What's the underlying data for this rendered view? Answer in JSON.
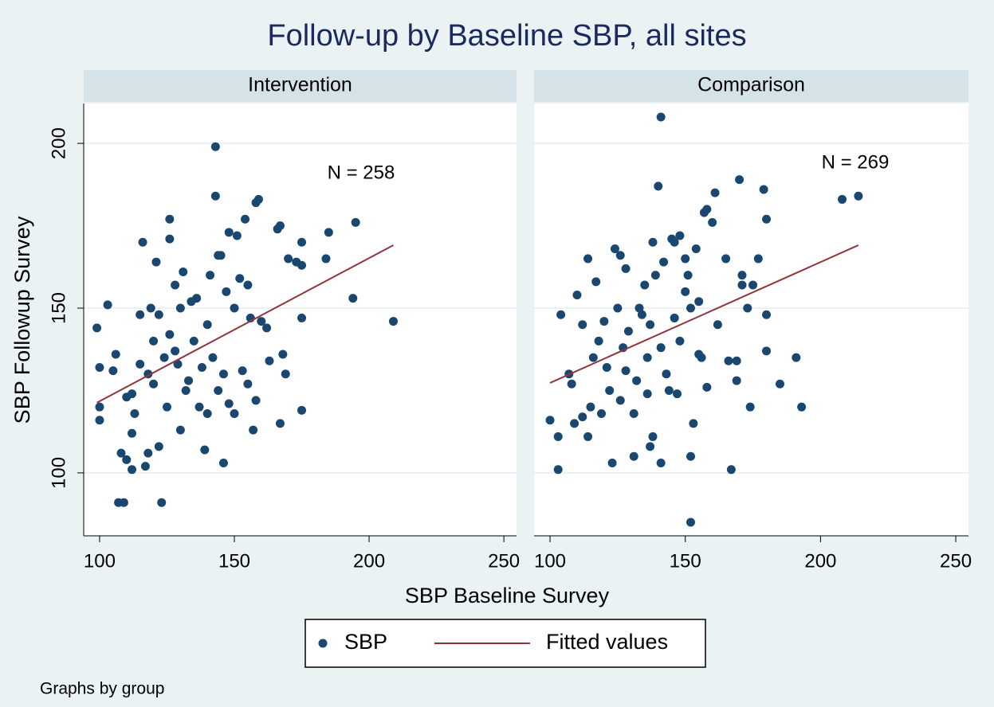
{
  "chart_data": {
    "type": "scatter",
    "title": "Follow-up by Baseline SBP, all sites",
    "xlabel": "SBP Baseline Survey",
    "ylabel": "SBP Followup Survey",
    "note": "Graphs by group",
    "xlim": [
      94.1,
      254.7
    ],
    "xticks": [
      100,
      150,
      200,
      250
    ],
    "ylim": [
      80.9,
      212.1
    ],
    "yticks": [
      100,
      150,
      200
    ],
    "grid": true,
    "legend_position": "bottom",
    "legend": [
      {
        "name": "SBP",
        "color": "#1a476f",
        "kind": "marker"
      },
      {
        "name": "Fitted values",
        "color": "#90353b",
        "kind": "line"
      }
    ],
    "panels": [
      {
        "title": "Intervention",
        "annotation": "N = 258",
        "points": {
          "x": [
            99,
            100,
            100,
            100,
            103,
            106,
            107,
            109,
            108,
            110,
            112,
            112,
            113,
            116,
            115,
            117,
            118,
            119,
            121,
            123,
            126,
            126,
            128,
            131,
            143,
            143,
            146,
            139,
            148,
            151,
            154,
            158,
            159,
            166,
            167,
            170,
            173,
            175,
            175,
            175,
            175,
            184,
            185,
            194,
            195,
            209,
            167,
            168,
            169,
            157,
            162,
            160,
            163,
            144,
            145,
            141,
            140,
            135,
            132,
            130,
            125,
            122,
            120,
            118,
            115,
            112,
            110,
            105,
            152,
            155,
            156,
            150,
            146,
            144,
            136,
            134,
            130,
            128,
            126,
            124,
            122,
            120,
            137,
            140,
            148,
            150,
            153,
            155,
            158,
            147,
            142,
            138,
            133,
            129
          ],
          "y": [
            144,
            132,
            120,
            116,
            151,
            136,
            91,
            91,
            106,
            104,
            112,
            101,
            118,
            170,
            148,
            102,
            106,
            150,
            164,
            91,
            177,
            171,
            157,
            161,
            199,
            184,
            103,
            107,
            173,
            172,
            177,
            182,
            183,
            174,
            175,
            165,
            164,
            170,
            163,
            147,
            119,
            165,
            173,
            153,
            176,
            146,
            115,
            136,
            130,
            113,
            144,
            146,
            134,
            166,
            166,
            160,
            145,
            140,
            125,
            113,
            120,
            108,
            127,
            130,
            133,
            124,
            123,
            131,
            159,
            157,
            147,
            150,
            130,
            125,
            153,
            152,
            150,
            137,
            142,
            135,
            148,
            140,
            120,
            118,
            121,
            118,
            131,
            127,
            122,
            155,
            135,
            132,
            128,
            133
          ]
        },
        "fit": {
          "x": [
            99,
            209
          ],
          "y": [
            121.3,
            169.1
          ]
        }
      },
      {
        "title": "Comparison",
        "annotation": "N = 269",
        "points": {
          "x": [
            100,
            103,
            103,
            104,
            107,
            108,
            110,
            112,
            114,
            114,
            117,
            120,
            123,
            124,
            126,
            128,
            131,
            134,
            136,
            137,
            138,
            138,
            140,
            141,
            141,
            142,
            145,
            146,
            148,
            150,
            152,
            152,
            153,
            155,
            156,
            157,
            158,
            158,
            160,
            161,
            162,
            165,
            166,
            167,
            169,
            169,
            170,
            171,
            171,
            173,
            174,
            175,
            177,
            179,
            180,
            180,
            180,
            185,
            191,
            193,
            208,
            214,
            115,
            118,
            121,
            125,
            127,
            129,
            132,
            133,
            135,
            139,
            143,
            144,
            146,
            148,
            150,
            152,
            154,
            131,
            126,
            122,
            119,
            116,
            112,
            109,
            137,
            141,
            147,
            151,
            155,
            136,
            128
          ],
          "y": [
            116,
            111,
            101,
            148,
            130,
            127,
            154,
            145,
            165,
            111,
            158,
            146,
            103,
            168,
            166,
            162,
            105,
            148,
            135,
            108,
            111,
            170,
            187,
            208,
            103,
            164,
            171,
            170,
            172,
            165,
            105,
            85,
            115,
            136,
            135,
            179,
            180,
            126,
            176,
            185,
            145,
            165,
            134,
            101,
            128,
            134,
            189,
            160,
            157,
            150,
            120,
            157,
            165,
            186,
            177,
            148,
            137,
            127,
            135,
            120,
            183,
            184,
            120,
            140,
            132,
            150,
            138,
            143,
            128,
            150,
            157,
            160,
            130,
            125,
            147,
            140,
            155,
            150,
            168,
            118,
            122,
            125,
            118,
            135,
            117,
            115,
            145,
            138,
            124,
            160,
            152,
            124,
            131
          ]
        },
        "fit": {
          "x": [
            100,
            214
          ],
          "y": [
            127.3,
            169.1
          ]
        }
      }
    ]
  }
}
